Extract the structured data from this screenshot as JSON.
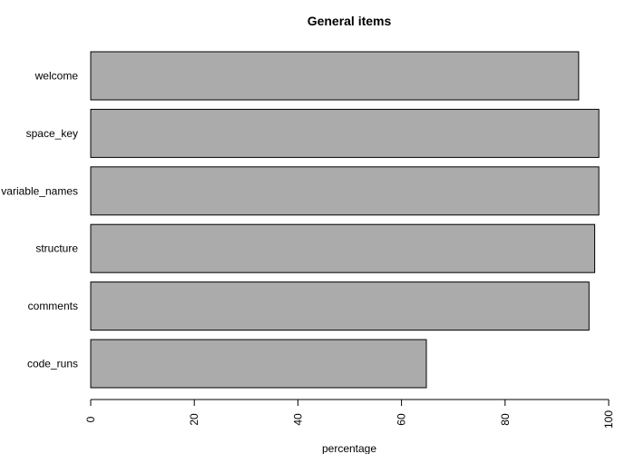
{
  "chart_data": {
    "type": "bar",
    "orientation": "horizontal",
    "title": "General items",
    "xlabel": "percentage",
    "ylabel": "",
    "categories": [
      "welcome",
      "space_key",
      "variable_names",
      "structure",
      "comments",
      "code_runs"
    ],
    "values": [
      94.2,
      98.1,
      98.1,
      97.3,
      96.2,
      64.8
    ],
    "xlim": [
      0,
      100
    ],
    "xticks": [
      0,
      20,
      40,
      60,
      80,
      100
    ],
    "grid": false,
    "legend": "none",
    "colors": {
      "bar_fill": "#ababab",
      "bar_stroke": "#000000"
    }
  }
}
